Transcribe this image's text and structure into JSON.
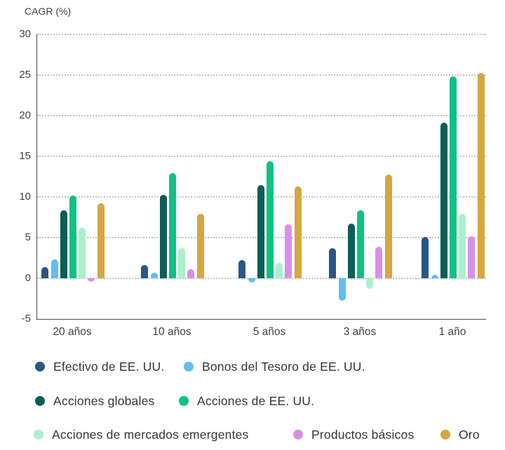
{
  "chart_data": {
    "type": "bar",
    "title": "CAGR (%)",
    "categories": [
      "20 años",
      "10 años",
      "5 años",
      "3 años",
      "1 año"
    ],
    "series": [
      {
        "name": "Efectivo de EE. UU.",
        "color": "#2A5783",
        "values": [
          1.4,
          1.6,
          2.2,
          3.7,
          5.1
        ]
      },
      {
        "name": "Bonos del Tesoro de EE. UU.",
        "color": "#63BDF0",
        "values": [
          2.3,
          0.7,
          -0.5,
          -2.8,
          0.4
        ]
      },
      {
        "name": "Acciones globales",
        "color": "#0C5E56",
        "values": [
          8.4,
          10.3,
          11.5,
          6.7,
          19.1
        ]
      },
      {
        "name": "Acciones de EE. UU.",
        "color": "#0FC183",
        "values": [
          10.2,
          12.9,
          14.4,
          8.4,
          24.8
        ]
      },
      {
        "name": "Acciones de mercados emergentes",
        "color": "#ABF0CB",
        "values": [
          6.2,
          3.7,
          1.9,
          -1.3,
          7.9
        ]
      },
      {
        "name": "Productos básicos",
        "color": "#D98FEA",
        "values": [
          -0.4,
          1.1,
          6.6,
          3.9,
          5.2
        ]
      },
      {
        "name": "Oro",
        "color": "#D6A63F",
        "values": [
          9.2,
          7.9,
          11.3,
          12.8,
          25.3
        ]
      }
    ],
    "xlabel": "",
    "ylabel": "CAGR (%)",
    "ylim": [
      -5,
      30
    ],
    "ytick_values": [
      30,
      25,
      20,
      15,
      10,
      5,
      0,
      -5
    ],
    "gridline_values": [
      30,
      25,
      20,
      15,
      10,
      5,
      0
    ],
    "grid": "horizontal-dotted",
    "legend_position": "bottom",
    "legend_rows": [
      [
        0,
        1
      ],
      [
        2,
        3
      ],
      [
        4,
        5,
        6
      ]
    ],
    "axis_color": "#4a4a4a",
    "gridline_color": "#c3c3c3",
    "text_color": "#3f3f3f"
  }
}
